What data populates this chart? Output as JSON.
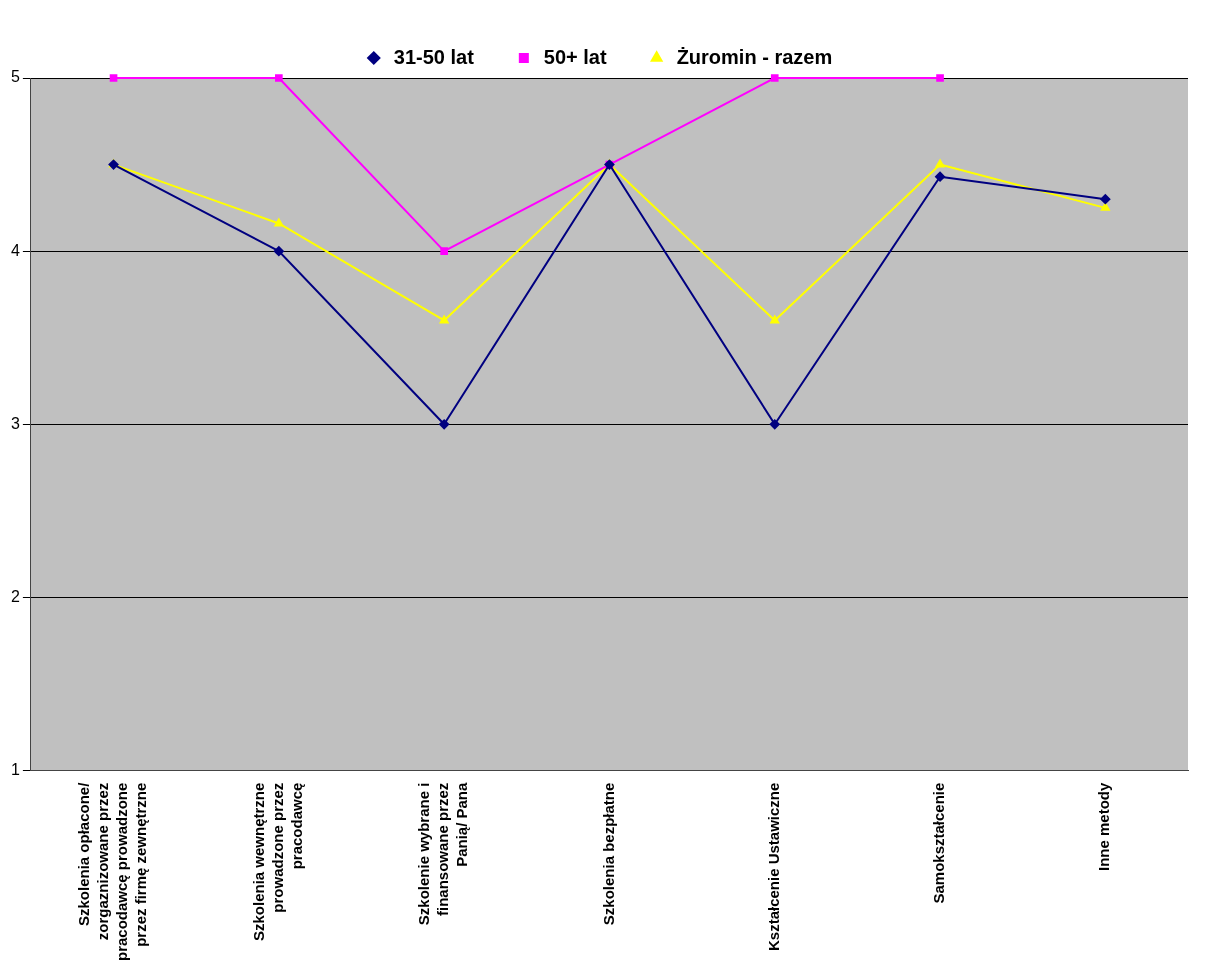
{
  "chart_data": {
    "type": "line",
    "categories": [
      "Szkolenia opłacone/ zorgaznizowane przez pracodawcę prowadzone przez firmę zewnętrzne",
      "Szkolenia wewnętrzne prowadzone przez pracodawcę",
      "Szkolenie wybrane i finansowane przez Panią/ Pana",
      "Szkolenia bezpłatne",
      "Kształcenie Ustawiczne",
      "Samokształcenie",
      "Inne metody"
    ],
    "series": [
      {
        "name": "31-50 lat",
        "color": "#000080",
        "marker": "diamond",
        "values": [
          4.5,
          4.0,
          3.0,
          4.5,
          3.0,
          4.43,
          4.3
        ]
      },
      {
        "name": "50+ lat",
        "color": "#ff00ff",
        "marker": "square",
        "values": [
          5,
          5,
          4,
          4.5,
          5,
          5,
          null
        ]
      },
      {
        "name": "Żuromin - razem",
        "color": "#ffff00",
        "marker": "triangle",
        "values": [
          4.5,
          4.16,
          3.6,
          4.5,
          3.6,
          4.5,
          4.25
        ]
      }
    ],
    "ylim": [
      1,
      5
    ],
    "yticks": [
      1,
      2,
      3,
      4,
      5
    ],
    "grid": "y",
    "legend": "top"
  }
}
